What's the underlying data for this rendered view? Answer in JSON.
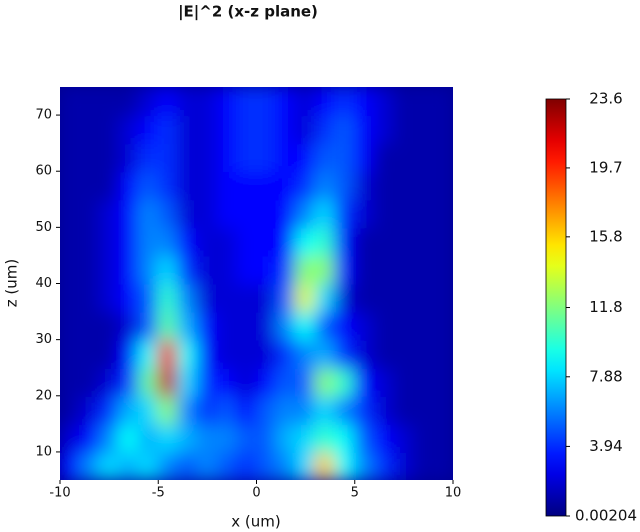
{
  "chart_data": {
    "type": "heatmap",
    "title": "|E|^2 (x-z plane)",
    "x_label": "x (um)",
    "y_label": "z (um)",
    "colormap": "jet",
    "x": [
      -9.5,
      -8.5,
      -7.5,
      -6.5,
      -5.5,
      -4.5,
      -3.5,
      -2.5,
      -1.5,
      -0.5,
      0.5,
      1.5,
      2.5,
      3.5,
      4.5,
      5.5,
      6.5,
      7.5,
      8.5,
      9.5
    ],
    "y": [
      7.5,
      12.5,
      17.5,
      22.5,
      27.5,
      32.5,
      37.5,
      42.5,
      47.5,
      52.5,
      57.5,
      62.5,
      67.5,
      72.5
    ],
    "values": [
      [
        3,
        6,
        8,
        7,
        8,
        6,
        5,
        6,
        5,
        4,
        5,
        6,
        8,
        16,
        9,
        6,
        4,
        2,
        1,
        1
      ],
      [
        2,
        3,
        6,
        9,
        7,
        8,
        7,
        6,
        6,
        5,
        5,
        7,
        8,
        10,
        9,
        5,
        3,
        2,
        1,
        1
      ],
      [
        1,
        2,
        4,
        7,
        8,
        12,
        6,
        4,
        5,
        3,
        5,
        6,
        6,
        8,
        6,
        4,
        2,
        1,
        1,
        1
      ],
      [
        1,
        1,
        2,
        4,
        11,
        22,
        8,
        4,
        3,
        2,
        3,
        5,
        5,
        12,
        10,
        3,
        2,
        1,
        1,
        1
      ],
      [
        1,
        1,
        1,
        3,
        9,
        21,
        9,
        3,
        2,
        2,
        2,
        4,
        6,
        7,
        4,
        2,
        1,
        1,
        1,
        1
      ],
      [
        1,
        1,
        1,
        2,
        5,
        11,
        7,
        3,
        2,
        2,
        2,
        6,
        9,
        5,
        3,
        2,
        1,
        1,
        1,
        1
      ],
      [
        1,
        1,
        2,
        3,
        5,
        10,
        6,
        2,
        2,
        2,
        2,
        5,
        14,
        8,
        2,
        1,
        1,
        1,
        1,
        1
      ],
      [
        1,
        1,
        2,
        3,
        6,
        8,
        4,
        2,
        2,
        3,
        3,
        4,
        12,
        12,
        3,
        1,
        1,
        1,
        1,
        1
      ],
      [
        1,
        1,
        2,
        3,
        6,
        6,
        3,
        2,
        2,
        3,
        3,
        3,
        9,
        10,
        3,
        1,
        1,
        1,
        1,
        1
      ],
      [
        1,
        1,
        2,
        3,
        6,
        5,
        2,
        2,
        3,
        3,
        3,
        3,
        6,
        8,
        4,
        2,
        1,
        1,
        1,
        1
      ],
      [
        1,
        1,
        1,
        3,
        5,
        4,
        2,
        2,
        3,
        3,
        3,
        3,
        4,
        6,
        5,
        2,
        1,
        1,
        1,
        1
      ],
      [
        1,
        1,
        1,
        2,
        4,
        4,
        2,
        2,
        3,
        4,
        4,
        3,
        3,
        5,
        5,
        3,
        1,
        1,
        1,
        1
      ],
      [
        1,
        1,
        1,
        2,
        3,
        4,
        2,
        2,
        3,
        4,
        4,
        3,
        2,
        4,
        5,
        3,
        2,
        1,
        1,
        1
      ],
      [
        1,
        1,
        1,
        1,
        2,
        3,
        2,
        2,
        3,
        4,
        4,
        3,
        2,
        3,
        4,
        3,
        2,
        1,
        1,
        1
      ]
    ],
    "xlim": [
      -10,
      10
    ],
    "ylim": [
      5,
      75
    ],
    "xticks": [
      -10,
      -5,
      0,
      5,
      10
    ],
    "yticks": [
      10,
      20,
      30,
      40,
      50,
      60,
      70
    ],
    "clim": [
      0.00204,
      23.6
    ],
    "cticks": [
      0.00204,
      3.94,
      7.88,
      11.8,
      15.8,
      19.7,
      23.6
    ]
  }
}
